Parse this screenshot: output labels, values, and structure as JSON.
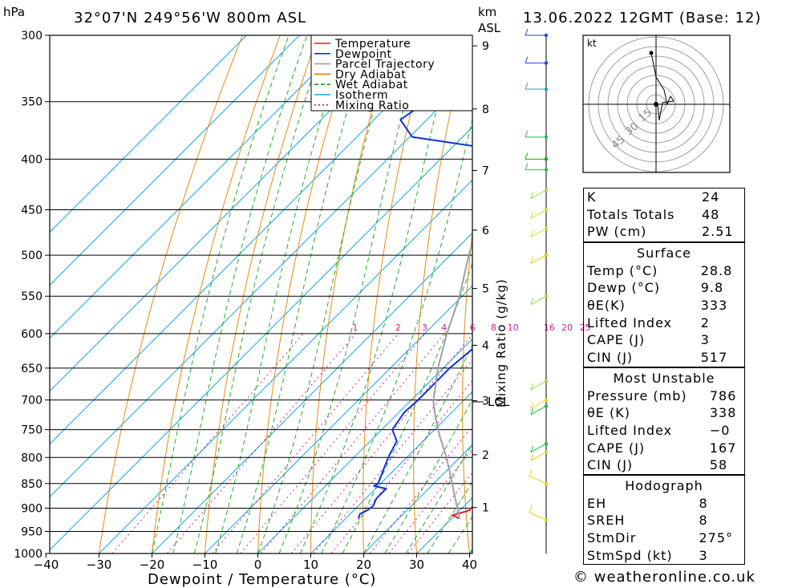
{
  "header": {
    "pressure_unit": "hPa",
    "location": "32°07'N  249°56'W  800m  ASL",
    "km_label": "km",
    "asl_label": "ASL",
    "datetime": "13.06.2022  12GMT  (Base: 12)"
  },
  "chart_data": {
    "type": "line",
    "chart_kind": "Skew-T log-P",
    "xlabel": "Dewpoint / Temperature (°C)",
    "ylabel_left": "hPa",
    "ylabel_right": "Mixing Ratio (g/kg)",
    "pressure_ticks": [
      300,
      350,
      400,
      450,
      500,
      550,
      600,
      650,
      700,
      750,
      800,
      850,
      900,
      950,
      1000
    ],
    "temperature_ticks": [
      -40,
      -30,
      -20,
      -10,
      0,
      10,
      20,
      30,
      40
    ],
    "xlim": [
      -40,
      40
    ],
    "ylim": [
      1000,
      300
    ],
    "y_scale": "log",
    "height_ticks_km": [
      1,
      2,
      3,
      4,
      5,
      6,
      7,
      8,
      9
    ],
    "mixing_ratio_labels": [
      1,
      2,
      3,
      4,
      6,
      8,
      10,
      16,
      20,
      25
    ],
    "lcl_label": "LCL",
    "lcl_pressure": 703,
    "legend": [
      {
        "name": "Temperature",
        "color": "#e02020",
        "style": "solid"
      },
      {
        "name": "Dewpoint",
        "color": "#1030e0",
        "style": "solid"
      },
      {
        "name": "Parcel Trajectory",
        "color": "#a0a0a0",
        "style": "solid"
      },
      {
        "name": "Dry Adiabat",
        "color": "#e07800",
        "style": "solid"
      },
      {
        "name": "Wet Adiabat",
        "color": "#00b000",
        "style": "dashed"
      },
      {
        "name": "Isotherm",
        "color": "#10a0e0",
        "style": "solid"
      },
      {
        "name": "Mixing Ratio",
        "color": "#d01080",
        "style": "dotted"
      }
    ],
    "legend_placement": "top-right",
    "series": [
      {
        "name": "Temperature",
        "points": [
          [
            922,
            31.5
          ],
          [
            915,
            29.5
          ],
          [
            905,
            31.8
          ],
          [
            880,
            31.5
          ],
          [
            860,
            30.5
          ],
          [
            850,
            30.8
          ],
          [
            820,
            28.5
          ],
          [
            800,
            26.0
          ],
          [
            760,
            23.0
          ],
          [
            720,
            19.0
          ],
          [
            690,
            15.2
          ],
          [
            660,
            13.2
          ],
          [
            620,
            8.6
          ],
          [
            580,
            4.5
          ],
          [
            550,
            1.4
          ],
          [
            500,
            -5.2
          ],
          [
            470,
            -10.2
          ],
          [
            440,
            -14.3
          ],
          [
            410,
            -19.0
          ],
          [
            390,
            -22.5
          ],
          [
            380,
            -20.5
          ],
          [
            360,
            -20.0
          ],
          [
            340,
            -24.5
          ],
          [
            320,
            -31.0
          ],
          [
            300,
            -36.5
          ]
        ]
      },
      {
        "name": "Dewpoint",
        "points": [
          [
            922,
            12.4
          ],
          [
            912,
            11.8
          ],
          [
            905,
            12.5
          ],
          [
            895,
            12.8
          ],
          [
            880,
            12.0
          ],
          [
            860,
            12.0
          ],
          [
            855,
            9.2
          ],
          [
            850,
            9.5
          ],
          [
            800,
            6.5
          ],
          [
            770,
            5.0
          ],
          [
            750,
            2.0
          ],
          [
            720,
            1.0
          ],
          [
            700,
            1.3
          ],
          [
            650,
            1.2
          ],
          [
            600,
            2.5
          ],
          [
            550,
            3.5
          ],
          [
            520,
            0.5
          ],
          [
            500,
            -8.5
          ],
          [
            490,
            -9.5
          ],
          [
            460,
            -10.0
          ],
          [
            440,
            -12.5
          ],
          [
            425,
            -19.0
          ],
          [
            405,
            -20.0
          ],
          [
            395,
            -25.0
          ],
          [
            380,
            -49.5
          ],
          [
            365,
            -55.0
          ],
          [
            345,
            -53.0
          ],
          [
            340,
            -29.0
          ],
          [
            330,
            -39.0
          ],
          [
            320,
            -31.5
          ],
          [
            315,
            -43.0
          ],
          [
            305,
            -32.0
          ],
          [
            300,
            -37.0
          ]
        ]
      },
      {
        "name": "Parcel Trajectory",
        "points": [
          [
            922,
            31.5
          ],
          [
            850,
            23.5
          ],
          [
            800,
            17.5
          ],
          [
            760,
            12.0
          ],
          [
            730,
            8.0
          ],
          [
            703,
            4.5
          ],
          [
            650,
            -1.0
          ],
          [
            600,
            -5.8
          ],
          [
            550,
            -10.5
          ],
          [
            500,
            -16.5
          ],
          [
            450,
            -22.5
          ],
          [
            400,
            -31.0
          ],
          [
            350,
            -40.5
          ],
          [
            300,
            -51.5
          ]
        ]
      }
    ]
  },
  "wind_profile": {
    "barbs": [
      {
        "pressure": 300,
        "color": "#2040e0"
      },
      {
        "pressure": 320,
        "color": "#2040e0"
      },
      {
        "pressure": 340,
        "color": "#20a0c0"
      },
      {
        "pressure": 380,
        "color": "#20c040"
      },
      {
        "pressure": 400,
        "color": "#00b000"
      },
      {
        "pressure": 410,
        "color": "#20c040"
      },
      {
        "pressure": 430,
        "color": "#a0d840"
      },
      {
        "pressure": 450,
        "color": "#c8e020"
      },
      {
        "pressure": 470,
        "color": "#c8e020"
      },
      {
        "pressure": 500,
        "color": "#e0d000"
      },
      {
        "pressure": 550,
        "color": "#a0d840"
      },
      {
        "pressure": 670,
        "color": "#a0d840"
      },
      {
        "pressure": 700,
        "color": "#e0e000"
      },
      {
        "pressure": 710,
        "color": "#20c040"
      },
      {
        "pressure": 775,
        "color": "#20c040"
      },
      {
        "pressure": 790,
        "color": "#c8e020"
      },
      {
        "pressure": 850,
        "color": "#e8d000"
      },
      {
        "pressure": 925,
        "color": "#e8d000"
      }
    ]
  },
  "hodograph": {
    "unit_label": "kt",
    "ring_labels": [
      "15",
      "30",
      "45"
    ]
  },
  "indices": {
    "general": [
      {
        "label": "K",
        "value": "24"
      },
      {
        "label": "Totals Totals",
        "value": "48"
      },
      {
        "label": "PW (cm)",
        "value": "2.51"
      }
    ],
    "surface": {
      "title": "Surface",
      "rows": [
        {
          "label": "Temp (°C)",
          "value": "28.8"
        },
        {
          "label": "Dewp (°C)",
          "value": "9.8"
        },
        {
          "label": "θE(K)",
          "value": "333"
        },
        {
          "label": "Lifted Index",
          "value": "2"
        },
        {
          "label": "CAPE (J)",
          "value": "3"
        },
        {
          "label": "CIN (J)",
          "value": "517"
        }
      ]
    },
    "most_unstable": {
      "title": "Most Unstable",
      "rows": [
        {
          "label": "Pressure (mb)",
          "value": "786"
        },
        {
          "label": "θE (K)",
          "value": "338"
        },
        {
          "label": "Lifted Index",
          "value": "−0"
        },
        {
          "label": "CAPE (J)",
          "value": "167"
        },
        {
          "label": "CIN (J)",
          "value": "58"
        }
      ]
    },
    "hodograph": {
      "title": "Hodograph",
      "rows": [
        {
          "label": "EH",
          "value": "8"
        },
        {
          "label": "SREH",
          "value": "8"
        },
        {
          "label": "StmDir",
          "value": "275°"
        },
        {
          "label": "StmSpd (kt)",
          "value": "3"
        }
      ]
    }
  },
  "credit": "© weatheronline.co.uk"
}
